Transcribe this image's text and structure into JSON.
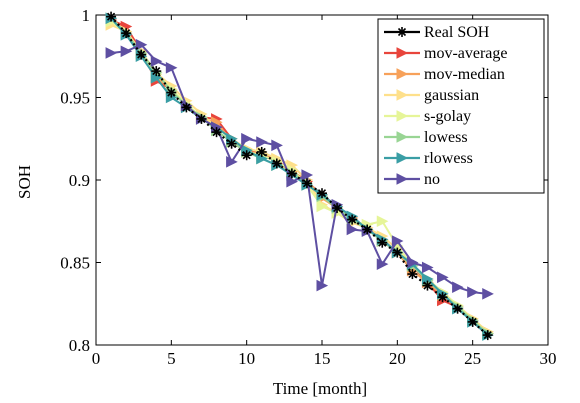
{
  "chart_data": {
    "type": "line",
    "title": "",
    "xlabel": "Time [month]",
    "ylabel": "SOH",
    "xlim": [
      0,
      30
    ],
    "ylim": [
      0.8,
      1.0
    ],
    "xticks": [
      0,
      5,
      10,
      15,
      20,
      25,
      30
    ],
    "yticks": [
      0.8,
      0.85,
      0.9,
      0.95,
      1.0
    ],
    "ytick_labels": [
      "0.8",
      "0.85",
      "0.9",
      "0.95",
      "1"
    ],
    "grid": false,
    "legend_position": "top-right",
    "x": [
      1,
      2,
      3,
      4,
      5,
      6,
      7,
      8,
      9,
      10,
      11,
      12,
      13,
      14,
      15,
      16,
      17,
      18,
      19,
      20,
      21,
      22,
      23,
      24,
      25,
      26
    ],
    "series": [
      {
        "name": "Real SOH",
        "color": "#000000",
        "marker": "asterisk",
        "values": [
          0.999,
          0.989,
          0.976,
          0.966,
          0.953,
          0.944,
          0.937,
          0.929,
          0.922,
          0.915,
          0.917,
          0.91,
          0.904,
          0.898,
          0.892,
          0.883,
          0.876,
          0.87,
          0.862,
          0.856,
          0.843,
          0.836,
          0.829,
          0.822,
          0.814,
          0.806
        ]
      },
      {
        "name": "mov-average",
        "color": "#E8453C",
        "marker": "triangle-right",
        "values": [
          0.997,
          0.993,
          0.978,
          0.96,
          0.955,
          0.945,
          0.938,
          0.937,
          0.925,
          0.918,
          0.916,
          0.912,
          0.905,
          0.899,
          0.891,
          0.884,
          0.877,
          0.871,
          0.864,
          0.856,
          0.848,
          0.838,
          0.827,
          0.823,
          0.815,
          0.807
        ]
      },
      {
        "name": "mov-median",
        "color": "#F7A15A",
        "marker": "triangle-right",
        "values": [
          0.998,
          0.99,
          0.977,
          0.962,
          0.955,
          0.945,
          0.937,
          0.935,
          0.923,
          0.917,
          0.916,
          0.911,
          0.905,
          0.9,
          0.889,
          0.883,
          0.877,
          0.87,
          0.863,
          0.856,
          0.845,
          0.838,
          0.83,
          0.823,
          0.815,
          0.808
        ]
      },
      {
        "name": "gaussian",
        "color": "#FEE08B",
        "marker": "triangle-right",
        "values": [
          0.994,
          0.99,
          0.978,
          0.965,
          0.957,
          0.948,
          0.94,
          0.932,
          0.925,
          0.919,
          0.917,
          0.913,
          0.909,
          0.9,
          0.885,
          0.88,
          0.874,
          0.871,
          0.866,
          0.858,
          0.848,
          0.84,
          0.832,
          0.824,
          0.816,
          0.808
        ]
      },
      {
        "name": "s-golay",
        "color": "#E6F598",
        "marker": "triangle-right",
        "values": [
          0.996,
          0.989,
          0.976,
          0.964,
          0.955,
          0.946,
          0.938,
          0.93,
          0.923,
          0.917,
          0.915,
          0.911,
          0.906,
          0.897,
          0.884,
          0.88,
          0.875,
          0.873,
          0.875,
          0.86,
          0.848,
          0.84,
          0.832,
          0.824,
          0.815,
          0.807
        ]
      },
      {
        "name": "lowess",
        "color": "#99D594",
        "marker": "triangle-right",
        "values": [
          0.998,
          0.989,
          0.977,
          0.965,
          0.954,
          0.945,
          0.938,
          0.93,
          0.923,
          0.917,
          0.913,
          0.909,
          0.904,
          0.898,
          0.89,
          0.883,
          0.876,
          0.87,
          0.863,
          0.856,
          0.848,
          0.839,
          0.831,
          0.823,
          0.815,
          0.807
        ]
      },
      {
        "name": "rlowess",
        "color": "#3A9EA5",
        "marker": "triangle-right",
        "values": [
          0.998,
          0.988,
          0.975,
          0.962,
          0.95,
          0.944,
          0.937,
          0.932,
          0.925,
          0.918,
          0.913,
          0.909,
          0.903,
          0.897,
          0.891,
          0.884,
          0.878,
          0.87,
          0.864,
          0.856,
          0.849,
          0.84,
          0.831,
          0.822,
          0.814,
          0.806
        ]
      },
      {
        "name": "no",
        "color": "#5E4FA2",
        "marker": "triangle-right",
        "values": [
          0.977,
          0.978,
          0.982,
          0.972,
          0.968,
          0.945,
          0.937,
          0.932,
          0.911,
          0.925,
          0.923,
          0.921,
          0.899,
          0.903,
          0.836,
          0.885,
          0.87,
          0.869,
          0.849,
          0.863,
          0.85,
          0.847,
          0.841,
          0.835,
          0.832,
          0.831
        ]
      }
    ]
  }
}
